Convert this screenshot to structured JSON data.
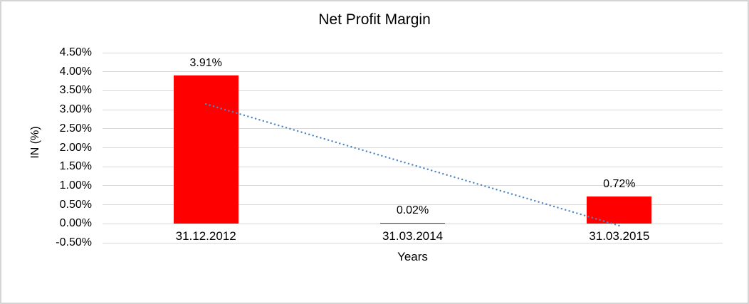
{
  "chart_data": {
    "type": "bar",
    "title": "Net Profit Margin",
    "xlabel": "Years",
    "ylabel": "IN (%)",
    "categories": [
      "31.12.2012",
      "31.03.2014",
      "31.03.2015"
    ],
    "values": [
      3.91,
      0.02,
      0.72
    ],
    "data_labels": [
      "3.91%",
      "0.02%",
      "0.72%"
    ],
    "ytick_labels": [
      "4.50%",
      "4.00%",
      "3.50%",
      "3.00%",
      "2.50%",
      "2.00%",
      "1.50%",
      "1.00%",
      "0.50%",
      "0.00%",
      "-0.50%"
    ],
    "ytick_values": [
      4.5,
      4.0,
      3.5,
      3.0,
      2.5,
      2.0,
      1.5,
      1.0,
      0.5,
      0.0,
      -0.5
    ],
    "ylim": [
      -0.5,
      4.5
    ],
    "grid": true,
    "legend_position": "none",
    "bar_color": "#FF0000",
    "gridline_color": "#D9D9D9",
    "text_color": "#000000",
    "frame_border_color": "#D5D5D5",
    "trendline": {
      "type": "linear",
      "style": "dotted",
      "color": "#4F86C5",
      "start_value": 3.15,
      "end_value": -0.05
    }
  }
}
